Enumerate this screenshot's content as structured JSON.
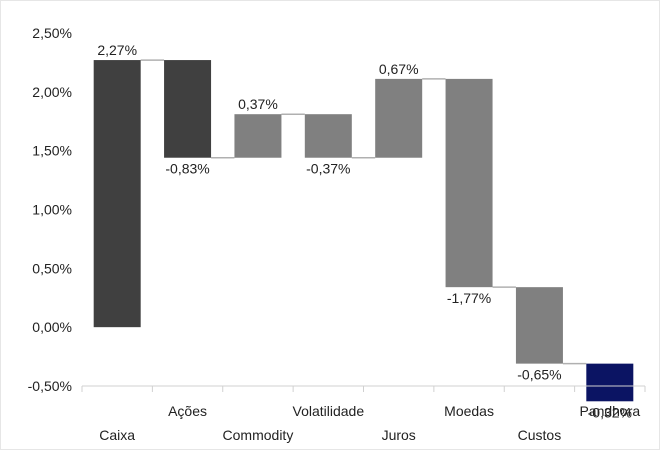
{
  "chart_data": {
    "type": "bar",
    "subtype": "waterfall",
    "title": "",
    "xlabel": "",
    "ylabel": "",
    "ylim": [
      -0.5,
      2.5
    ],
    "y_ticks": [
      "-0,50%",
      "0,00%",
      "0,50%",
      "1,00%",
      "1,50%",
      "2,00%",
      "2,50%"
    ],
    "y_tick_values": [
      -0.5,
      0.0,
      0.5,
      1.0,
      1.5,
      2.0,
      2.5
    ],
    "grid": false,
    "legend": "none",
    "categories": [
      "Caixa",
      "Ações",
      "Commodity",
      "Volatilidade",
      "Juros",
      "Moedas",
      "Custos",
      "Pandhora"
    ],
    "values": [
      2.27,
      -0.83,
      0.37,
      -0.37,
      0.67,
      -1.77,
      -0.65,
      -0.32
    ],
    "data_labels": [
      "2,27%",
      "-0,83%",
      "0,37%",
      "-0,37%",
      "0,67%",
      "-1,77%",
      "-0,65%",
      "-0,32%"
    ],
    "label_position": [
      "top",
      "bottom",
      "top",
      "bottom",
      "top",
      "bottom",
      "bottom",
      "bottom"
    ],
    "category_label_row": [
      1,
      0,
      1,
      0,
      1,
      0,
      1,
      0
    ],
    "colors": [
      "#404040",
      "#404040",
      "#808080",
      "#808080",
      "#808080",
      "#808080",
      "#808080",
      "#0b1463"
    ],
    "connector_color": "#b0b0b0",
    "axis_color": "#d0d0d0"
  }
}
